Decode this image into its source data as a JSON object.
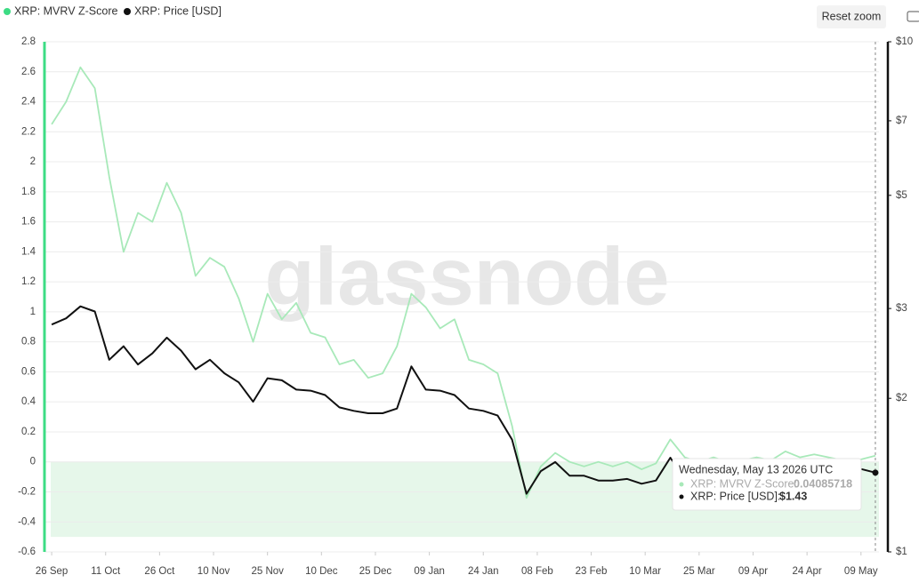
{
  "chart_data": {
    "type": "line",
    "watermark": "glassnode",
    "x": [
      "2025-09-26",
      "2025-09-30",
      "2025-10-04",
      "2025-10-08",
      "2025-10-12",
      "2025-10-16",
      "2025-10-20",
      "2025-10-24",
      "2025-10-28",
      "2025-11-01",
      "2025-11-05",
      "2025-11-09",
      "2025-11-13",
      "2025-11-17",
      "2025-11-21",
      "2025-11-25",
      "2025-11-29",
      "2025-12-03",
      "2025-12-07",
      "2025-12-11",
      "2025-12-15",
      "2025-12-19",
      "2025-12-23",
      "2025-12-27",
      "2025-12-31",
      "2026-01-04",
      "2026-01-08",
      "2026-01-12",
      "2026-01-16",
      "2026-01-20",
      "2026-01-24",
      "2026-01-28",
      "2026-02-01",
      "2026-02-05",
      "2026-02-09",
      "2026-02-13",
      "2026-02-17",
      "2026-02-21",
      "2026-02-25",
      "2026-03-01",
      "2026-03-05",
      "2026-03-09",
      "2026-03-13",
      "2026-03-17",
      "2026-03-21",
      "2026-03-25",
      "2026-03-29",
      "2026-04-02",
      "2026-04-06",
      "2026-04-10",
      "2026-04-14",
      "2026-04-18",
      "2026-04-22",
      "2026-04-26",
      "2026-04-30",
      "2026-05-04",
      "2026-05-08",
      "2026-05-13"
    ],
    "series": [
      {
        "name": "XRP: MVRV Z-Score",
        "color": "#a8e9b9",
        "values": [
          2.25,
          2.4,
          2.63,
          2.49,
          1.9,
          1.4,
          1.66,
          1.6,
          1.86,
          1.66,
          1.24,
          1.36,
          1.3,
          1.09,
          0.8,
          1.12,
          0.95,
          1.06,
          0.86,
          0.83,
          0.65,
          0.68,
          0.56,
          0.59,
          0.77,
          1.12,
          1.03,
          0.89,
          0.95,
          0.68,
          0.65,
          0.59,
          0.24,
          -0.24,
          -0.03,
          0.06,
          0,
          -0.03,
          0,
          -0.03,
          0,
          -0.05,
          -0.01,
          0.15,
          0.03,
          0,
          0.03,
          0,
          0.01,
          0.03,
          0.01,
          0.07,
          0.03,
          0.05,
          0.03,
          0.01,
          0.01,
          0.04085718
        ]
      },
      {
        "name": "XRP: Price [USD]",
        "color": "#111111",
        "axis": "y2",
        "values": [
          2.79,
          2.87,
          3.03,
          2.96,
          2.38,
          2.53,
          2.33,
          2.45,
          2.63,
          2.48,
          2.28,
          2.38,
          2.24,
          2.15,
          1.97,
          2.19,
          2.17,
          2.08,
          2.07,
          2.03,
          1.92,
          1.89,
          1.87,
          1.87,
          1.91,
          2.31,
          2.08,
          2.07,
          2.03,
          1.91,
          1.89,
          1.85,
          1.66,
          1.3,
          1.44,
          1.5,
          1.41,
          1.41,
          1.38,
          1.38,
          1.39,
          1.36,
          1.38,
          1.53,
          1.38,
          1.41,
          1.4,
          1.41,
          1.39,
          1.42,
          1.4,
          1.41,
          1.39,
          1.4,
          1.42,
          1.41,
          1.46,
          1.43
        ]
      }
    ],
    "xlim": [
      "2025-09-24",
      "2026-05-14"
    ],
    "xticks": [
      {
        "value": "2025-09-26",
        "label": "26 Sep"
      },
      {
        "value": "2025-10-11",
        "label": "11 Oct"
      },
      {
        "value": "2025-10-26",
        "label": "26 Oct"
      },
      {
        "value": "2025-11-10",
        "label": "10 Nov"
      },
      {
        "value": "2025-11-25",
        "label": "25 Nov"
      },
      {
        "value": "2025-12-10",
        "label": "10 Dec"
      },
      {
        "value": "2025-12-25",
        "label": "25 Dec"
      },
      {
        "value": "2026-01-09",
        "label": "09 Jan"
      },
      {
        "value": "2026-01-24",
        "label": "24 Jan"
      },
      {
        "value": "2026-02-08",
        "label": "08 Feb"
      },
      {
        "value": "2026-02-23",
        "label": "23 Feb"
      },
      {
        "value": "2026-03-10",
        "label": "10 Mar"
      },
      {
        "value": "2026-03-25",
        "label": "25 Mar"
      },
      {
        "value": "2026-04-09",
        "label": "09 Apr"
      },
      {
        "value": "2026-04-24",
        "label": "24 Apr"
      },
      {
        "value": "2026-05-09",
        "label": "09 May"
      }
    ],
    "ylim": [
      -0.6,
      2.8
    ],
    "yticks": [
      -0.6,
      -0.4,
      -0.2,
      0,
      0.2,
      0.4,
      0.6,
      0.8,
      1,
      1.2,
      1.4,
      1.6,
      1.8,
      2,
      2.2,
      2.4,
      2.6,
      2.8
    ],
    "y2lim": [
      1,
      10
    ],
    "y2scale": "log",
    "y2ticks": [
      {
        "value": 1,
        "label": "$1"
      },
      {
        "value": 2,
        "label": "$2"
      },
      {
        "value": 3,
        "label": "$3"
      },
      {
        "value": 5,
        "label": "$5"
      },
      {
        "value": 7,
        "label": "$7"
      },
      {
        "value": 10,
        "label": "$10"
      }
    ],
    "shaded_range": [
      -0.5,
      0
    ],
    "shaded_color": "#e6f7ea",
    "grid": true,
    "reset_button": "Reset zoom",
    "tooltip": {
      "title": "Wednesday, May 13 2026 UTC",
      "z_label": "XRP: MVRV Z-Score:",
      "price_label": "XRP: Price [USD]:",
      "price_text": "$1.43"
    }
  }
}
